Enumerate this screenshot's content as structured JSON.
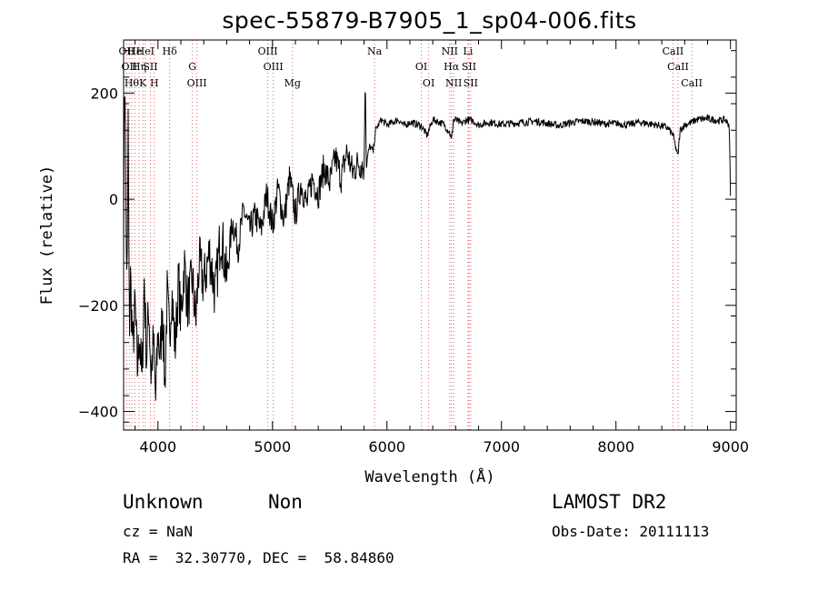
{
  "header": {
    "title": "spec-55879-B7905_1_sp04-006.fits"
  },
  "info": {
    "class": "Unknown",
    "subclass": "Non",
    "survey": "LAMOST DR2",
    "cz": "cz = NaN",
    "obs_date": "Obs-Date: 20111113",
    "coords": "RA =  32.30770, DEC =  58.84860"
  },
  "colors": {
    "line": "#000000",
    "marker": "#e06060",
    "grid": "#555555"
  },
  "chart_data": {
    "type": "line",
    "title": "spec-55879-B7905_1_sp04-006.fits",
    "xlabel": "Wavelength (Å)",
    "ylabel": "Flux (relative)",
    "xlim": [
      3700,
      9050
    ],
    "ylim": [
      -435,
      300
    ],
    "xticks": [
      4000,
      5000,
      6000,
      7000,
      8000,
      9000
    ],
    "xtick_labels": [
      "4000",
      "5000",
      "6000",
      "7000",
      "8000",
      "9000"
    ],
    "yticks": [
      -400,
      -200,
      0,
      200
    ],
    "ytick_labels": [
      "−400",
      "−200",
      "0",
      "200"
    ],
    "grid": false,
    "series": [
      {
        "x": [
          3700,
          3710,
          3720,
          3730,
          3740,
          3750,
          3760,
          3780,
          3800,
          3820,
          3840,
          3860,
          3880,
          3900,
          3920,
          3940,
          3960,
          3980,
          4000,
          4020,
          4040,
          4060,
          4080,
          4100,
          4120,
          4150,
          4180,
          4200,
          4230,
          4260,
          4300,
          4330,
          4360,
          4400,
          4450,
          4500,
          4550,
          4600,
          4650,
          4700,
          4750,
          4800,
          4850,
          4900,
          4950,
          5000,
          5050,
          5100,
          5150,
          5200,
          5250,
          5300,
          5350,
          5400,
          5450,
          5500,
          5550,
          5600,
          5650,
          5700,
          5750,
          5800,
          5810,
          5820,
          5830,
          5850,
          5880,
          5900,
          5950,
          6000,
          6050,
          6100,
          6150,
          6200,
          6250,
          6300,
          6350,
          6400,
          6450,
          6500,
          6550,
          6563,
          6580,
          6600,
          6650,
          6700,
          6750,
          6800,
          6900,
          7000,
          7100,
          7200,
          7300,
          7400,
          7500,
          7600,
          7700,
          7800,
          7900,
          8000,
          8100,
          8200,
          8300,
          8400,
          8450,
          8500,
          8540,
          8560,
          8600,
          8662,
          8700,
          8800,
          8900,
          8950,
          8990,
          9000
        ],
        "y": [
          -50,
          280,
          0,
          -200,
          150,
          -250,
          -150,
          -280,
          -200,
          -320,
          -250,
          -350,
          -150,
          -300,
          -200,
          -330,
          -270,
          -380,
          -250,
          -300,
          -200,
          -350,
          -180,
          -260,
          -170,
          -280,
          -150,
          -230,
          -120,
          -200,
          -150,
          -230,
          -120,
          -160,
          -100,
          -180,
          -60,
          -150,
          -40,
          -90,
          -20,
          -60,
          -30,
          -60,
          10,
          -50,
          20,
          -40,
          40,
          -30,
          30,
          -10,
          40,
          10,
          60,
          30,
          80,
          40,
          90,
          50,
          70,
          60,
          240,
          60,
          80,
          100,
          90,
          130,
          150,
          140,
          145,
          150,
          138,
          145,
          142,
          138,
          120,
          150,
          146,
          140,
          125,
          110,
          148,
          150,
          142,
          150,
          148,
          140,
          145,
          141,
          143,
          145,
          147,
          143,
          139,
          144,
          147,
          146,
          142,
          143,
          140,
          145,
          142,
          138,
          135,
          120,
          80,
          130,
          140,
          145,
          150,
          152,
          148,
          150,
          140,
          5
        ]
      }
    ],
    "line_markers": [
      {
        "wl": 3727,
        "label": "OII"
      },
      {
        "wl": 3750,
        "label": "OII"
      },
      {
        "wl": 3771,
        "label": "Hθ"
      },
      {
        "wl": 3798,
        "label": "He"
      },
      {
        "wl": 3835,
        "label": "Hη"
      },
      {
        "wl": 3869,
        "label": "K"
      },
      {
        "wl": 3889,
        "label": "HeI"
      },
      {
        "wl": 3934,
        "label": "SII"
      },
      {
        "wl": 3968,
        "label": "H"
      },
      {
        "wl": 4102,
        "label": "Hδ"
      },
      {
        "wl": 4300,
        "label": "G"
      },
      {
        "wl": 4340,
        "label": "OIII"
      },
      {
        "wl": 4959,
        "label": "OIII"
      },
      {
        "wl": 5007,
        "label": "OIII"
      },
      {
        "wl": 5175,
        "label": "Mg"
      },
      {
        "wl": 5892,
        "label": "Na"
      },
      {
        "wl": 6300,
        "label": "OI"
      },
      {
        "wl": 6364,
        "label": "OI"
      },
      {
        "wl": 6548,
        "label": "NII"
      },
      {
        "wl": 6563,
        "label": "Hα"
      },
      {
        "wl": 6583,
        "label": "NII"
      },
      {
        "wl": 6708,
        "label": "Li"
      },
      {
        "wl": 6716,
        "label": "SII"
      },
      {
        "wl": 6731,
        "label": "SII"
      },
      {
        "wl": 8498,
        "label": "CaII"
      },
      {
        "wl": 8542,
        "label": "CaII"
      },
      {
        "wl": 8662,
        "label": "CaII"
      }
    ]
  }
}
